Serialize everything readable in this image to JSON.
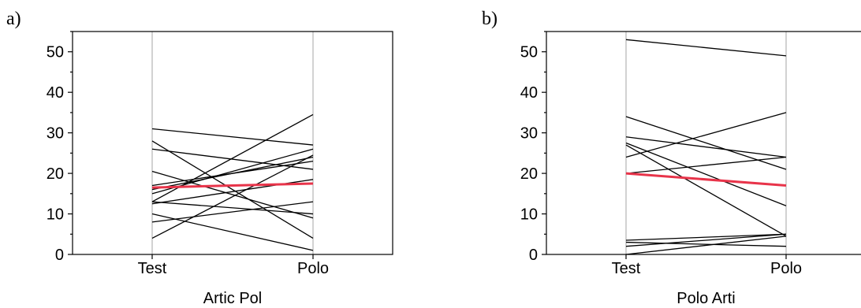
{
  "chart_data": [
    {
      "panel_label": "a)",
      "type": "line",
      "categories": [
        "Test",
        "Polo"
      ],
      "xlabel": "Artic Pol",
      "ylabel": "",
      "ylim": [
        0,
        55
      ],
      "yticks": [
        0,
        10,
        20,
        30,
        40,
        50
      ],
      "grid": false,
      "colors": {
        "individual": "#000000",
        "mean": "#e8344a",
        "category_line": "#b5b5b5"
      },
      "series": [
        {
          "values": [
            31,
            27
          ]
        },
        {
          "values": [
            28,
            4
          ]
        },
        {
          "values": [
            26,
            21
          ]
        },
        {
          "values": [
            20.5,
            9
          ]
        },
        {
          "values": [
            17,
            23
          ]
        },
        {
          "values": [
            16,
            24
          ]
        },
        {
          "values": [
            15,
            26
          ]
        },
        {
          "values": [
            13,
            34.5
          ]
        },
        {
          "values": [
            13,
            10
          ]
        },
        {
          "values": [
            12.5,
            18.5
          ]
        },
        {
          "values": [
            10,
            1
          ]
        },
        {
          "values": [
            8,
            13
          ]
        },
        {
          "values": [
            4,
            24.5
          ]
        }
      ],
      "mean": {
        "values": [
          16.5,
          17.5
        ]
      }
    },
    {
      "panel_label": "b)",
      "type": "line",
      "categories": [
        "Test",
        "Polo"
      ],
      "xlabel": "Polo Arti",
      "ylabel": "",
      "ylim": [
        0,
        55
      ],
      "yticks": [
        0,
        10,
        20,
        30,
        40,
        50
      ],
      "grid": false,
      "colors": {
        "individual": "#000000",
        "mean": "#e8344a",
        "category_line": "#b5b5b5"
      },
      "series": [
        {
          "values": [
            53,
            49
          ]
        },
        {
          "values": [
            34,
            21
          ]
        },
        {
          "values": [
            29,
            24
          ]
        },
        {
          "values": [
            27.5,
            12
          ]
        },
        {
          "values": [
            27,
            4.5
          ]
        },
        {
          "values": [
            24,
            35
          ]
        },
        {
          "values": [
            20,
            24
          ]
        },
        {
          "values": [
            3.5,
            5
          ]
        },
        {
          "values": [
            3,
            2
          ]
        },
        {
          "values": [
            2,
            5
          ]
        },
        {
          "values": [
            0,
            4.5
          ]
        }
      ],
      "mean": {
        "values": [
          20,
          17
        ]
      }
    }
  ]
}
